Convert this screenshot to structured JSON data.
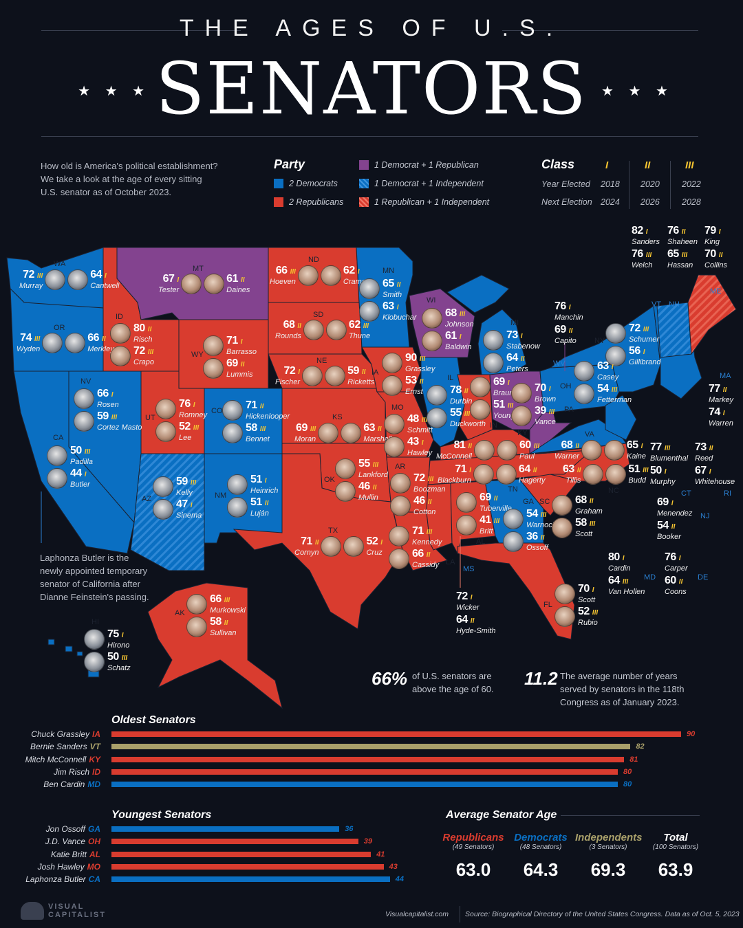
{
  "header": {
    "kicker": "THE AGES OF U.S.",
    "title": "SENATORS",
    "stars": "★ ★ ★"
  },
  "intro": "How old is America's political establishment? We take a look at the age of every sitting U.S. senator as of October 2023.",
  "party_legend": {
    "title": "Party",
    "items": [
      {
        "label": "2 Democrats",
        "swatch": "blue"
      },
      {
        "label": "2 Republicans",
        "swatch": "red"
      },
      {
        "label": "1 Democrat + 1 Republican",
        "swatch": "purple"
      },
      {
        "label": "1 Democrat + 1 Independent",
        "swatch": "bluestripe"
      },
      {
        "label": "1 Republican + 1 Independent",
        "swatch": "redstripe"
      }
    ]
  },
  "class_legend": {
    "title": "Class",
    "row_labels": [
      "Year Elected",
      "Next Election"
    ],
    "classes": [
      {
        "name": "I",
        "elected": "2018",
        "next": "2024"
      },
      {
        "name": "II",
        "elected": "2020",
        "next": "2026"
      },
      {
        "name": "III",
        "elected": "2022",
        "next": "2028"
      }
    ]
  },
  "colors": {
    "democrat": "#0a6fc2",
    "republican": "#d93c2f",
    "split": "#83438f",
    "independent": "#a9a06a",
    "class": "#f4c431"
  },
  "states": {
    "WA": {
      "s": [
        {
          "age": "72",
          "cls": "III",
          "name": "Murray"
        },
        {
          "age": "64",
          "cls": "I",
          "name": "Cantwell"
        }
      ]
    },
    "OR": {
      "s": [
        {
          "age": "74",
          "cls": "III",
          "name": "Wyden"
        },
        {
          "age": "66",
          "cls": "II",
          "name": "Merkley"
        }
      ]
    },
    "MT": {
      "s": [
        {
          "age": "67",
          "cls": "I",
          "name": "Tester"
        },
        {
          "age": "61",
          "cls": "II",
          "name": "Daines"
        }
      ]
    },
    "ND": {
      "s": [
        {
          "age": "66",
          "cls": "III",
          "name": "Hoeven"
        },
        {
          "age": "62",
          "cls": "I",
          "name": "Cramer"
        }
      ]
    },
    "SD": {
      "s": [
        {
          "age": "68",
          "cls": "II",
          "name": "Rounds"
        },
        {
          "age": "62",
          "cls": "III",
          "name": "Thune"
        }
      ]
    },
    "NE": {
      "s": [
        {
          "age": "72",
          "cls": "I",
          "name": "Fischer"
        },
        {
          "age": "59",
          "cls": "II",
          "name": "Ricketts"
        }
      ]
    },
    "KS": {
      "s": [
        {
          "age": "69",
          "cls": "III",
          "name": "Moran"
        },
        {
          "age": "63",
          "cls": "II",
          "name": "Marshall"
        }
      ]
    },
    "TX": {
      "s": [
        {
          "age": "71",
          "cls": "II",
          "name": "Cornyn"
        },
        {
          "age": "52",
          "cls": "I",
          "name": "Cruz"
        }
      ]
    },
    "ID": {
      "s": [
        {
          "age": "80",
          "cls": "II",
          "name": "Risch"
        },
        {
          "age": "72",
          "cls": "III",
          "name": "Crapo"
        }
      ]
    },
    "WY": {
      "s": [
        {
          "age": "71",
          "cls": "I",
          "name": "Barrasso"
        },
        {
          "age": "69",
          "cls": "II",
          "name": "Lummis"
        }
      ]
    },
    "NV": {
      "s": [
        {
          "age": "66",
          "cls": "I",
          "name": "Rosen"
        },
        {
          "age": "59",
          "cls": "III",
          "name": "Cortez Masto"
        }
      ]
    },
    "CA": {
      "s": [
        {
          "age": "50",
          "cls": "III",
          "name": "Padilla"
        },
        {
          "age": "44",
          "cls": "I",
          "name": "Butler"
        }
      ]
    },
    "UT": {
      "s": [
        {
          "age": "76",
          "cls": "I",
          "name": "Romney"
        },
        {
          "age": "52",
          "cls": "III",
          "name": "Lee"
        }
      ]
    },
    "CO": {
      "s": [
        {
          "age": "71",
          "cls": "II",
          "name": "Hickenlooper"
        },
        {
          "age": "58",
          "cls": "III",
          "name": "Bennet"
        }
      ]
    },
    "AZ": {
      "s": [
        {
          "age": "59",
          "cls": "III",
          "name": "Kelly"
        },
        {
          "age": "47",
          "cls": "I",
          "name": "Sinema"
        }
      ]
    },
    "NM": {
      "s": [
        {
          "age": "51",
          "cls": "I",
          "name": "Heinrich"
        },
        {
          "age": "51",
          "cls": "II",
          "name": "Luján"
        }
      ]
    },
    "MN": {
      "s": [
        {
          "age": "65",
          "cls": "II",
          "name": "Smith"
        },
        {
          "age": "63",
          "cls": "I",
          "name": "Klobuchar"
        }
      ]
    },
    "IA": {
      "s": [
        {
          "age": "90",
          "cls": "III",
          "name": "Grassley"
        },
        {
          "age": "53",
          "cls": "II",
          "name": "Ernst"
        }
      ]
    },
    "MO": {
      "s": [
        {
          "age": "48",
          "cls": "III",
          "name": "Schmitt"
        },
        {
          "age": "43",
          "cls": "I",
          "name": "Hawley"
        }
      ]
    },
    "OK": {
      "s": [
        {
          "age": "55",
          "cls": "III",
          "name": "Lankford"
        },
        {
          "age": "46",
          "cls": "II",
          "name": "Mullin"
        }
      ]
    },
    "AR": {
      "s": [
        {
          "age": "72",
          "cls": "III",
          "name": "Boozman"
        },
        {
          "age": "46",
          "cls": "II",
          "name": "Cotton"
        }
      ]
    },
    "LA": {
      "s": [
        {
          "age": "71",
          "cls": "III",
          "name": "Kennedy"
        },
        {
          "age": "66",
          "cls": "II",
          "name": "Cassidy"
        }
      ]
    },
    "WI": {
      "s": [
        {
          "age": "68",
          "cls": "III",
          "name": "Johnson"
        },
        {
          "age": "61",
          "cls": "I",
          "name": "Baldwin"
        }
      ]
    },
    "IL": {
      "s": [
        {
          "age": "78",
          "cls": "II",
          "name": "Durbin"
        },
        {
          "age": "55",
          "cls": "III",
          "name": "Duckworth"
        }
      ]
    },
    "IN": {
      "s": [
        {
          "age": "69",
          "cls": "I",
          "name": "Braun"
        },
        {
          "age": "51",
          "cls": "III",
          "name": "Young"
        }
      ]
    },
    "OH": {
      "s": [
        {
          "age": "70",
          "cls": "I",
          "name": "Brown"
        },
        {
          "age": "39",
          "cls": "III",
          "name": "Vance"
        }
      ]
    },
    "MI": {
      "s": [
        {
          "age": "73",
          "cls": "I",
          "name": "Stabenow"
        },
        {
          "age": "64",
          "cls": "II",
          "name": "Peters"
        }
      ]
    },
    "KY": {
      "s": [
        {
          "age": "81",
          "cls": "II",
          "name": "McConnell"
        },
        {
          "age": "60",
          "cls": "III",
          "name": "Paul"
        }
      ]
    },
    "TN": {
      "s": [
        {
          "age": "71",
          "cls": "I",
          "name": "Blackburn"
        },
        {
          "age": "64",
          "cls": "II",
          "name": "Hagerty"
        }
      ]
    },
    "VA": {
      "s": [
        {
          "age": "68",
          "cls": "II",
          "name": "Warner"
        },
        {
          "age": "65",
          "cls": "I",
          "name": "Kaine"
        }
      ]
    },
    "NC": {
      "s": [
        {
          "age": "63",
          "cls": "II",
          "name": "Tillis"
        },
        {
          "age": "51",
          "cls": "III",
          "name": "Budd"
        }
      ]
    },
    "AL": {
      "s": [
        {
          "age": "69",
          "cls": "II",
          "name": "Tuberville"
        },
        {
          "age": "41",
          "cls": "III",
          "name": "Britt"
        }
      ]
    },
    "GA": {
      "s": [
        {
          "age": "54",
          "cls": "III",
          "name": "Warnock"
        },
        {
          "age": "36",
          "cls": "II",
          "name": "Ossoff"
        }
      ]
    },
    "SC": {
      "s": [
        {
          "age": "68",
          "cls": "II",
          "name": "Graham"
        },
        {
          "age": "58",
          "cls": "III",
          "name": "Scott"
        }
      ]
    },
    "FL": {
      "s": [
        {
          "age": "70",
          "cls": "I",
          "name": "Scott"
        },
        {
          "age": "52",
          "cls": "III",
          "name": "Rubio"
        }
      ]
    },
    "MS": {
      "s": [
        {
          "age": "72",
          "cls": "I",
          "name": "Wicker"
        },
        {
          "age": "64",
          "cls": "II",
          "name": "Hyde-Smith"
        }
      ]
    },
    "WV": {
      "s": [
        {
          "age": "76",
          "cls": "I",
          "name": "Manchin"
        },
        {
          "age": "69",
          "cls": "II",
          "name": "Capito"
        }
      ]
    },
    "NY": {
      "s": [
        {
          "age": "72",
          "cls": "III",
          "name": "Schumer"
        },
        {
          "age": "56",
          "cls": "I",
          "name": "Gillibrand"
        }
      ]
    },
    "PA": {
      "s": [
        {
          "age": "63",
          "cls": "I",
          "name": "Casey"
        },
        {
          "age": "54",
          "cls": "III",
          "name": "Fetterman"
        }
      ]
    },
    "VT": {
      "s": [
        {
          "age": "82",
          "cls": "I",
          "name": "Sanders"
        },
        {
          "age": "76",
          "cls": "III",
          "name": "Welch"
        }
      ]
    },
    "NH": {
      "s": [
        {
          "age": "76",
          "cls": "II",
          "name": "Shaheen"
        },
        {
          "age": "65",
          "cls": "III",
          "name": "Hassan"
        }
      ]
    },
    "ME": {
      "s": [
        {
          "age": "79",
          "cls": "I",
          "name": "King"
        },
        {
          "age": "70",
          "cls": "II",
          "name": "Collins"
        }
      ]
    },
    "MA": {
      "s": [
        {
          "age": "77",
          "cls": "II",
          "name": "Markey"
        },
        {
          "age": "74",
          "cls": "I",
          "name": "Warren"
        }
      ]
    },
    "CT": {
      "s": [
        {
          "age": "77",
          "cls": "III",
          "name": "Blumenthal"
        },
        {
          "age": "50",
          "cls": "I",
          "name": "Murphy"
        }
      ]
    },
    "RI": {
      "s": [
        {
          "age": "73",
          "cls": "II",
          "name": "Reed"
        },
        {
          "age": "67",
          "cls": "I",
          "name": "Whitehouse"
        }
      ]
    },
    "NJ": {
      "s": [
        {
          "age": "69",
          "cls": "I",
          "name": "Menendez"
        },
        {
          "age": "54",
          "cls": "II",
          "name": "Booker"
        }
      ]
    },
    "MD": {
      "s": [
        {
          "age": "80",
          "cls": "I",
          "name": "Cardin"
        },
        {
          "age": "64",
          "cls": "III",
          "name": "Van Hollen"
        }
      ]
    },
    "DE": {
      "s": [
        {
          "age": "76",
          "cls": "I",
          "name": "Carper"
        },
        {
          "age": "60",
          "cls": "II",
          "name": "Coons"
        }
      ]
    },
    "HI": {
      "s": [
        {
          "age": "75",
          "cls": "I",
          "name": "Hirono"
        },
        {
          "age": "50",
          "cls": "III",
          "name": "Schatz"
        }
      ]
    },
    "AK": {
      "s": [
        {
          "age": "66",
          "cls": "III",
          "name": "Murkowski"
        },
        {
          "age": "58",
          "cls": "II",
          "name": "Sullivan"
        }
      ]
    }
  },
  "butler_note": "Laphonza Butler is the newly appointed temporary senator of California after Dianne Feinstein's passing.",
  "stats": [
    {
      "value": "66%",
      "text": "of U.S. senators are above the age of 60."
    },
    {
      "value": "11.2",
      "text": "The average number of years served by senators in the 118th Congress as of January 2023."
    }
  ],
  "oldest": {
    "title": "Oldest Senators",
    "rows": [
      {
        "name": "Chuck Grassley",
        "state": "IA",
        "age": 90,
        "party": "republican"
      },
      {
        "name": "Bernie Sanders",
        "state": "VT",
        "age": 82,
        "party": "independent"
      },
      {
        "name": "Mitch McConnell",
        "state": "KY",
        "age": 81,
        "party": "republican"
      },
      {
        "name": "Jim Risch",
        "state": "ID",
        "age": 80,
        "party": "republican"
      },
      {
        "name": "Ben Cardin",
        "state": "MD",
        "age": 80,
        "party": "democrat"
      }
    ]
  },
  "youngest": {
    "title": "Youngest Senators",
    "rows": [
      {
        "name": "Jon Ossoff",
        "state": "GA",
        "age": 36,
        "party": "democrat"
      },
      {
        "name": "J.D. Vance",
        "state": "OH",
        "age": 39,
        "party": "republican"
      },
      {
        "name": "Katie Britt",
        "state": "AL",
        "age": 41,
        "party": "republican"
      },
      {
        "name": "Josh Hawley",
        "state": "MO",
        "age": 43,
        "party": "republican"
      },
      {
        "name": "Laphonza Butler",
        "state": "CA",
        "age": 44,
        "party": "democrat"
      }
    ]
  },
  "average": {
    "title": "Average Senator Age",
    "groups": [
      {
        "label": "Republicans",
        "sub": "(49 Senators)",
        "value": "63.0",
        "party": "republican"
      },
      {
        "label": "Democrats",
        "sub": "(48 Senators)",
        "value": "64.3",
        "party": "democrat"
      },
      {
        "label": "Independents",
        "sub": "(3 Senators)",
        "value": "69.3",
        "party": "independent"
      },
      {
        "label": "Total",
        "sub": "(100 Senators)",
        "value": "63.9",
        "party": "total"
      }
    ]
  },
  "footer": {
    "brand": "VISUAL CAPITALIST",
    "site": "Visualcapitalist.com",
    "source": "Source: Biographical Directory of the United States Congress. Data as of Oct. 5, 2023"
  }
}
